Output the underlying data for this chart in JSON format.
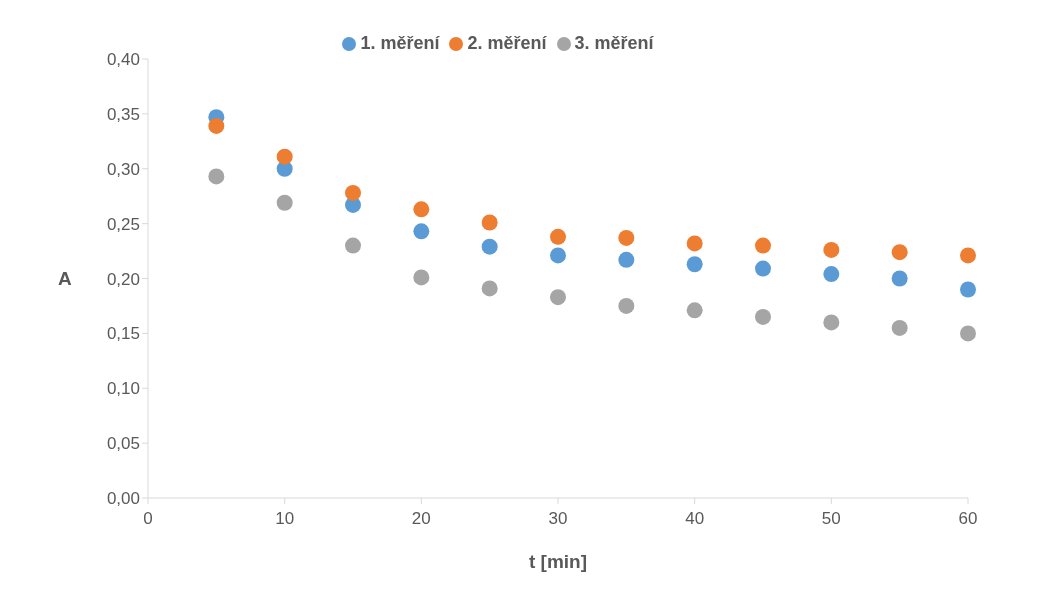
{
  "chart_data": {
    "type": "scatter",
    "xlabel": "t [min]",
    "ylabel": "A",
    "x": [
      5,
      10,
      15,
      20,
      25,
      30,
      35,
      40,
      45,
      50,
      55,
      60
    ],
    "series": [
      {
        "name": "1. měření",
        "color": "#5b9bd5",
        "values": [
          0.347,
          0.3,
          0.267,
          0.243,
          0.229,
          0.221,
          0.217,
          0.213,
          0.209,
          0.204,
          0.2,
          0.19
        ]
      },
      {
        "name": "2. měření",
        "color": "#ed7d31",
        "values": [
          0.339,
          0.311,
          0.278,
          0.263,
          0.251,
          0.238,
          0.237,
          0.232,
          0.23,
          0.226,
          0.224,
          0.221
        ]
      },
      {
        "name": "3. měření",
        "color": "#a5a5a5",
        "values": [
          0.293,
          0.269,
          0.23,
          0.201,
          0.191,
          0.183,
          0.175,
          0.171,
          0.165,
          0.16,
          0.155,
          0.15
        ]
      }
    ],
    "xlim": [
      0,
      60
    ],
    "xticks": [
      0,
      10,
      20,
      30,
      40,
      50,
      60
    ],
    "ylim": [
      0,
      0.4
    ],
    "yticks": [
      {
        "value": 0,
        "label": "0,00"
      },
      {
        "value": 0.05,
        "label": "0,05"
      },
      {
        "value": 0.1,
        "label": "0,10"
      },
      {
        "value": 0.15,
        "label": "0,15"
      },
      {
        "value": 0.2,
        "label": "0,20"
      },
      {
        "value": 0.25,
        "label": "0,25"
      },
      {
        "value": 0.3,
        "label": "0,30"
      },
      {
        "value": 0.35,
        "label": "0,35"
      },
      {
        "value": 0.4,
        "label": "0,40"
      }
    ],
    "grid": false,
    "legend": "top",
    "marker": "circle"
  }
}
